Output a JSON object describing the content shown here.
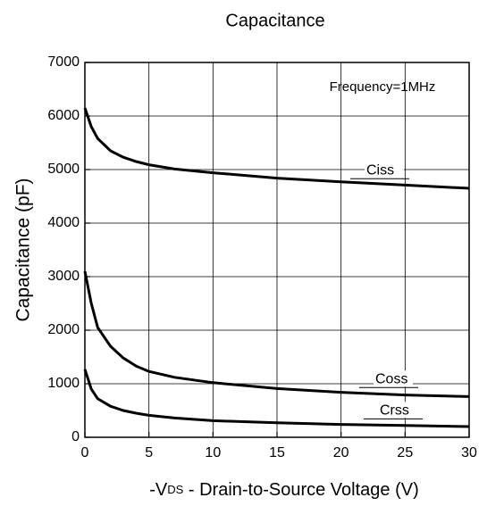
{
  "chart_data": {
    "type": "line",
    "title": "Capacitance",
    "xlabel": {
      "prefix": "-V",
      "subscript": "DS",
      "rest": " - Drain-to-Source Voltage (V)"
    },
    "ylabel": "Capacitance (pF)",
    "annotation": "Frequency=1MHz",
    "x": [
      0,
      0.5,
      1,
      2,
      3,
      4,
      5,
      7,
      10,
      15,
      20,
      25,
      30
    ],
    "series": [
      {
        "name": "Ciss",
        "color": "#000000",
        "values": [
          6150,
          5800,
          5580,
          5350,
          5230,
          5150,
          5090,
          5010,
          4940,
          4840,
          4770,
          4710,
          4650
        ]
      },
      {
        "name": "Coss",
        "color": "#000000",
        "values": [
          3100,
          2500,
          2050,
          1700,
          1480,
          1330,
          1230,
          1120,
          1020,
          910,
          840,
          790,
          760
        ]
      },
      {
        "name": "Crss",
        "color": "#000000",
        "values": [
          1270,
          900,
          720,
          580,
          500,
          450,
          410,
          360,
          310,
          270,
          240,
          220,
          200
        ]
      }
    ],
    "xlim": [
      0,
      30
    ],
    "xticks": [
      0,
      5,
      10,
      15,
      20,
      25,
      30
    ],
    "ylim": [
      0,
      7000
    ],
    "yticks": [
      0,
      1000,
      2000,
      3000,
      4000,
      5000,
      6000,
      7000
    ],
    "grid": true
  }
}
